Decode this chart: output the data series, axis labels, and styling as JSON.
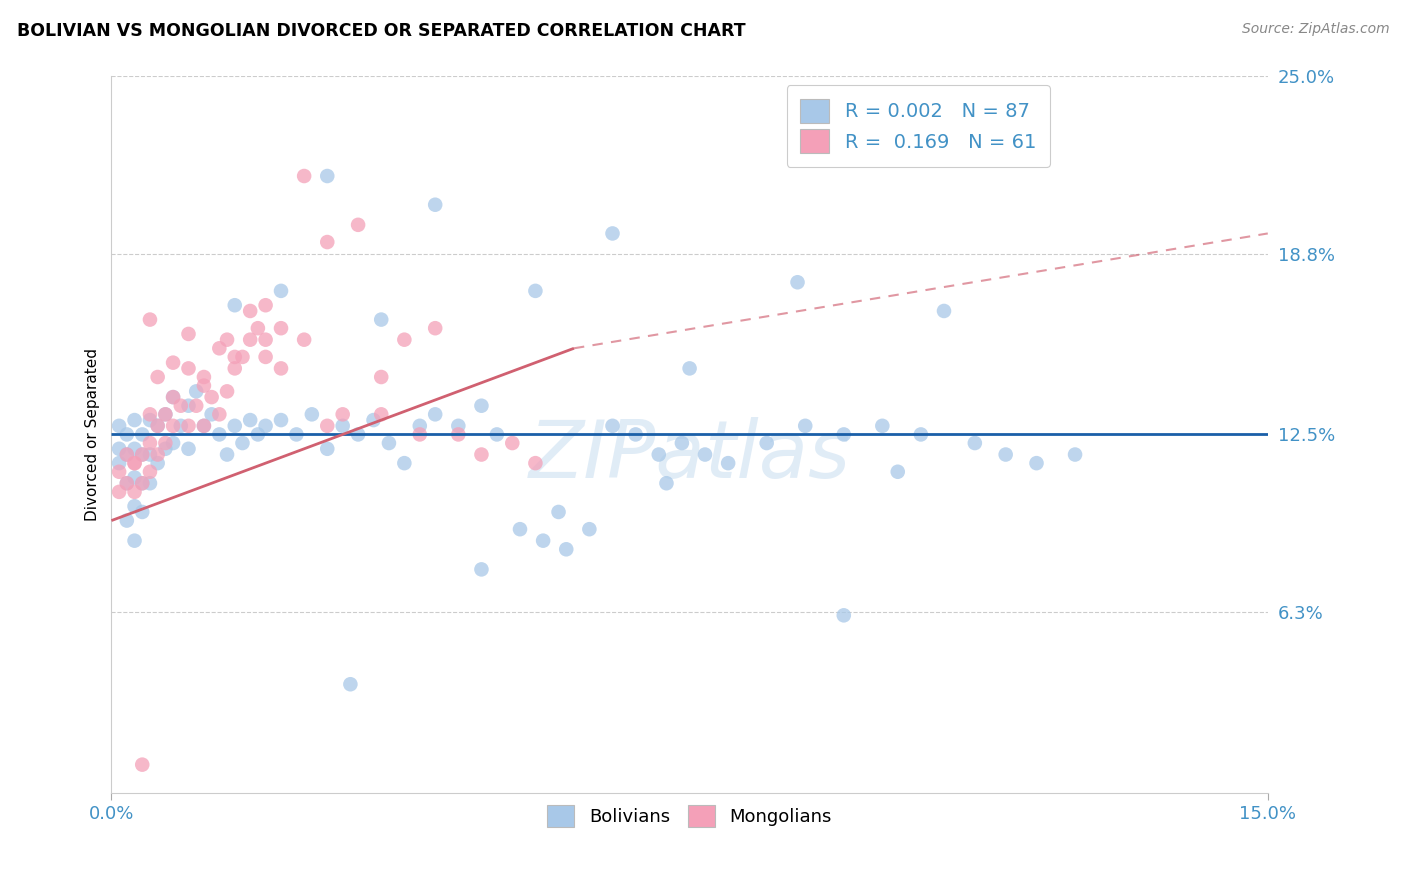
{
  "title": "BOLIVIAN VS MONGOLIAN DIVORCED OR SEPARATED CORRELATION CHART",
  "source": "Source: ZipAtlas.com",
  "ylabel": "Divorced or Separated",
  "xlim": [
    0.0,
    0.15
  ],
  "ylim": [
    0.0,
    0.25
  ],
  "ytick_labels": [
    "6.3%",
    "12.5%",
    "18.8%",
    "25.0%"
  ],
  "ytick_vals": [
    0.063,
    0.125,
    0.188,
    0.25
  ],
  "xtick_vals": [
    0.0,
    0.15
  ],
  "xtick_labels": [
    "0.0%",
    "15.0%"
  ],
  "watermark": "ZIPatlas",
  "legend_blue_r": "0.002",
  "legend_blue_n": "87",
  "legend_pink_r": "0.169",
  "legend_pink_n": "61",
  "color_blue": "#a8c8e8",
  "color_pink": "#f4a0b8",
  "color_blue_line": "#1a5fa8",
  "color_pink_line": "#d06070",
  "color_tick": "#4292c6",
  "blue_trend": [
    0.0,
    0.125,
    0.15,
    0.125
  ],
  "pink_trend_solid": [
    0.0,
    0.095,
    0.06,
    0.155
  ],
  "pink_trend_dash": [
    0.06,
    0.155,
    0.15,
    0.195
  ],
  "bolivians_x": [
    0.001,
    0.001,
    0.001,
    0.002,
    0.002,
    0.002,
    0.002,
    0.003,
    0.003,
    0.003,
    0.003,
    0.003,
    0.004,
    0.004,
    0.004,
    0.004,
    0.005,
    0.005,
    0.005,
    0.006,
    0.006,
    0.007,
    0.007,
    0.008,
    0.008,
    0.009,
    0.01,
    0.01,
    0.011,
    0.012,
    0.013,
    0.014,
    0.015,
    0.016,
    0.017,
    0.018,
    0.019,
    0.02,
    0.022,
    0.024,
    0.026,
    0.028,
    0.03,
    0.032,
    0.034,
    0.036,
    0.038,
    0.04,
    0.042,
    0.045,
    0.048,
    0.05,
    0.053,
    0.056,
    0.059,
    0.062,
    0.065,
    0.068,
    0.071,
    0.074,
    0.077,
    0.08,
    0.085,
    0.09,
    0.095,
    0.1,
    0.105,
    0.108,
    0.112,
    0.116,
    0.12,
    0.125,
    0.065,
    0.042,
    0.055,
    0.035,
    0.028,
    0.022,
    0.016,
    0.075,
    0.089,
    0.095,
    0.048,
    0.072,
    0.031,
    0.058,
    0.102
  ],
  "bolivians_y": [
    0.12,
    0.128,
    0.115,
    0.125,
    0.118,
    0.108,
    0.095,
    0.13,
    0.12,
    0.11,
    0.1,
    0.088,
    0.125,
    0.118,
    0.108,
    0.098,
    0.13,
    0.118,
    0.108,
    0.128,
    0.115,
    0.132,
    0.12,
    0.138,
    0.122,
    0.128,
    0.135,
    0.12,
    0.14,
    0.128,
    0.132,
    0.125,
    0.118,
    0.128,
    0.122,
    0.13,
    0.125,
    0.128,
    0.13,
    0.125,
    0.132,
    0.12,
    0.128,
    0.125,
    0.13,
    0.122,
    0.115,
    0.128,
    0.132,
    0.128,
    0.135,
    0.125,
    0.092,
    0.088,
    0.085,
    0.092,
    0.128,
    0.125,
    0.118,
    0.122,
    0.118,
    0.115,
    0.122,
    0.128,
    0.125,
    0.128,
    0.125,
    0.168,
    0.122,
    0.118,
    0.115,
    0.118,
    0.195,
    0.205,
    0.175,
    0.165,
    0.215,
    0.175,
    0.17,
    0.148,
    0.178,
    0.062,
    0.078,
    0.108,
    0.038,
    0.098,
    0.112
  ],
  "mongolians_x": [
    0.001,
    0.001,
    0.002,
    0.002,
    0.003,
    0.003,
    0.004,
    0.004,
    0.005,
    0.005,
    0.006,
    0.006,
    0.007,
    0.007,
    0.008,
    0.009,
    0.01,
    0.011,
    0.012,
    0.013,
    0.014,
    0.015,
    0.016,
    0.017,
    0.018,
    0.019,
    0.02,
    0.022,
    0.025,
    0.028,
    0.02,
    0.015,
    0.01,
    0.008,
    0.005,
    0.003,
    0.025,
    0.032,
    0.038,
    0.042,
    0.018,
    0.012,
    0.03,
    0.022,
    0.016,
    0.012,
    0.008,
    0.005,
    0.028,
    0.035,
    0.04,
    0.045,
    0.048,
    0.052,
    0.055,
    0.035,
    0.02,
    0.014,
    0.01,
    0.006,
    0.004
  ],
  "mongolians_y": [
    0.112,
    0.105,
    0.118,
    0.108,
    0.115,
    0.105,
    0.118,
    0.108,
    0.122,
    0.112,
    0.128,
    0.118,
    0.132,
    0.122,
    0.128,
    0.135,
    0.128,
    0.135,
    0.128,
    0.138,
    0.132,
    0.158,
    0.148,
    0.152,
    0.158,
    0.162,
    0.158,
    0.162,
    0.158,
    0.192,
    0.152,
    0.14,
    0.148,
    0.15,
    0.132,
    0.115,
    0.215,
    0.198,
    0.158,
    0.162,
    0.168,
    0.145,
    0.132,
    0.148,
    0.152,
    0.142,
    0.138,
    0.165,
    0.128,
    0.132,
    0.125,
    0.125,
    0.118,
    0.122,
    0.115,
    0.145,
    0.17,
    0.155,
    0.16,
    0.145,
    0.01
  ]
}
